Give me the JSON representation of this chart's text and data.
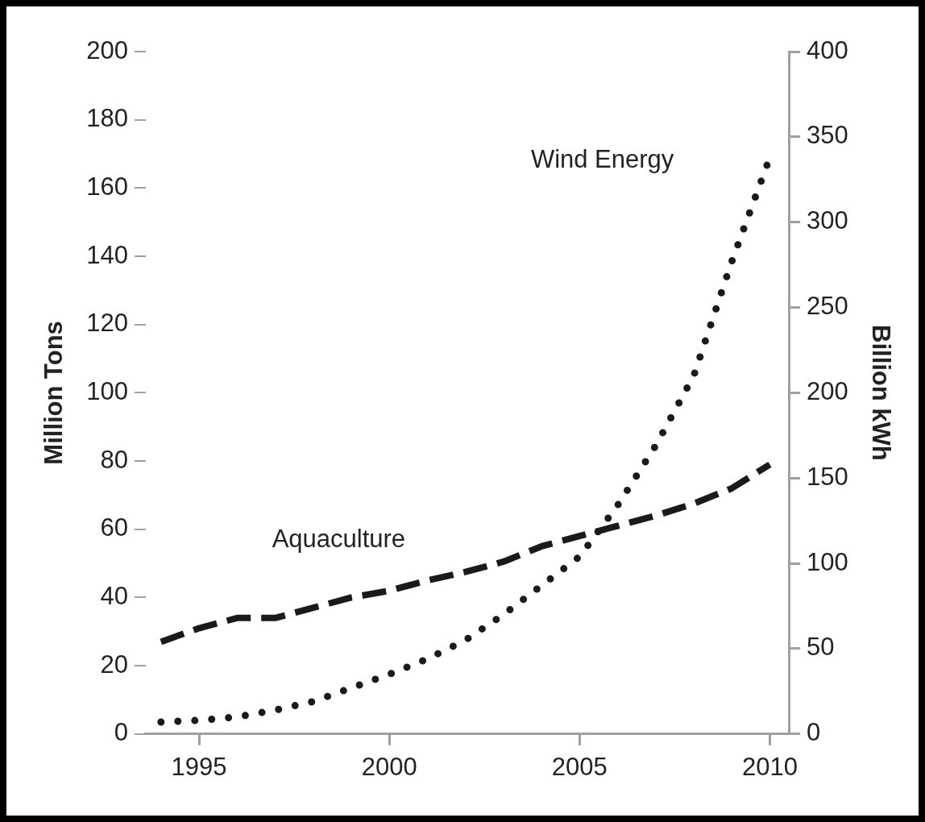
{
  "chart_data": {
    "type": "line",
    "ylabel": "Million Tons",
    "y2label": "Billion kWh",
    "x": [
      1994,
      1995,
      1996,
      1997,
      1998,
      1999,
      2000,
      2001,
      2002,
      2003,
      2004,
      2005,
      2006,
      2007,
      2008,
      2009,
      2010
    ],
    "series": [
      {
        "color": "#1a1a1a",
        "line_style": "dashed",
        "values": [
          27,
          31,
          34,
          34,
          37,
          40,
          42,
          45,
          47.5,
          50.5,
          55,
          58,
          61,
          64,
          67.5,
          72,
          79
        ]
      },
      {
        "color": "#1a1a1a",
        "line_style": "dotted",
        "axis": "y2",
        "values": [
          7,
          8,
          10,
          14,
          19,
          27,
          35,
          44,
          55,
          70,
          87,
          104,
          134,
          169,
          210,
          277,
          338
        ]
      }
    ],
    "xlim": [
      1993.6,
      2010.5
    ],
    "xticks": [
      1995,
      2000,
      2005,
      2010
    ],
    "ylim": [
      0,
      200
    ],
    "yticks": [
      0,
      20,
      40,
      60,
      80,
      100,
      120,
      140,
      160,
      180,
      200
    ],
    "y2lim": [
      0,
      400
    ],
    "y2ticks": [
      0,
      50,
      100,
      150,
      200,
      250,
      300,
      350,
      400
    ],
    "grid": false,
    "legend": false,
    "marker": "none",
    "annotations": [
      "Wind Energy",
      "Aquaculture"
    ]
  }
}
